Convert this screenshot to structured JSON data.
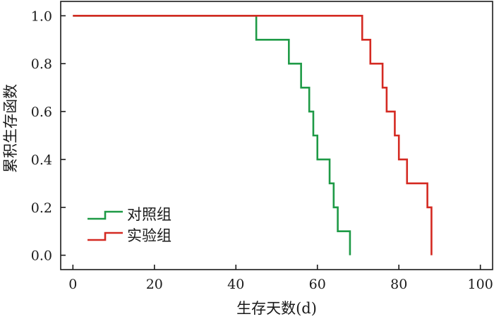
{
  "chart_data": {
    "type": "line",
    "step": true,
    "xlabel": "生存天数(d)",
    "ylabel": "累积生存函数",
    "xlim": [
      -3,
      103
    ],
    "ylim": [
      -0.06,
      1.06
    ],
    "xticks": [
      0,
      20,
      40,
      60,
      80,
      100
    ],
    "xtick_labels": [
      "0",
      "20",
      "40",
      "60",
      "80",
      "100"
    ],
    "yticks": [
      0.0,
      0.2,
      0.4,
      0.6,
      0.8,
      1.0
    ],
    "ytick_labels": [
      "0.0",
      "0.2",
      "0.4",
      "0.6",
      "0.8",
      "1.0"
    ],
    "grid": false,
    "legend_position": "bottom-left",
    "series": [
      {
        "name": "对照组",
        "color": "#1e9a46",
        "x": [
          0,
          45,
          53,
          56,
          58,
          59,
          60,
          63,
          64,
          65,
          68
        ],
        "y": [
          1.0,
          0.9,
          0.8,
          0.7,
          0.6,
          0.5,
          0.4,
          0.3,
          0.2,
          0.1,
          0.0
        ]
      },
      {
        "name": "实验组",
        "color": "#d42a22",
        "x": [
          0,
          71,
          73,
          76,
          77,
          79,
          80,
          82,
          87,
          88
        ],
        "y": [
          1.0,
          0.9,
          0.8,
          0.7,
          0.6,
          0.5,
          0.4,
          0.3,
          0.2,
          0.0
        ]
      }
    ]
  }
}
